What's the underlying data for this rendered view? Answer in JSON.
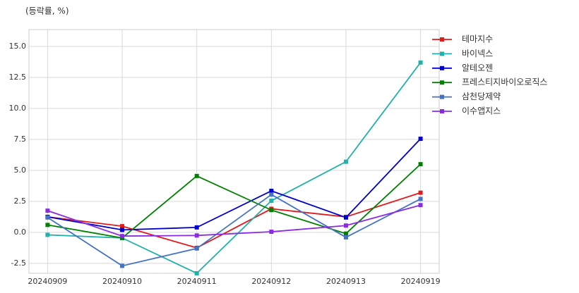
{
  "chart_data": {
    "type": "line",
    "ylabel": "(등락률, %)",
    "categories": [
      "20240909",
      "20240910",
      "20240911",
      "20240912",
      "20240913",
      "20240919"
    ],
    "series": [
      {
        "name": "테마지수",
        "color": "#e31a1c",
        "values": [
          1.25,
          0.5,
          -1.25,
          1.9,
          1.25,
          3.2
        ]
      },
      {
        "name": "바이넥스",
        "color": "#20b2aa",
        "values": [
          -0.2,
          -0.45,
          -3.3,
          2.55,
          5.7,
          13.7
        ]
      },
      {
        "name": "알테오젠",
        "color": "#0000cd",
        "values": [
          1.25,
          0.2,
          0.4,
          3.35,
          1.2,
          7.55
        ]
      },
      {
        "name": "프레스티지바이오로직스",
        "color": "#008000",
        "values": [
          0.6,
          -0.45,
          4.55,
          1.8,
          -0.1,
          5.5
        ]
      },
      {
        "name": "삼천당제약",
        "color": "#4472c4",
        "values": [
          1.2,
          -2.7,
          -1.3,
          3.05,
          -0.4,
          2.7
        ]
      },
      {
        "name": "이수앱지스",
        "color": "#8a2be2",
        "values": [
          1.75,
          -0.3,
          -0.25,
          0.05,
          0.55,
          2.2
        ]
      }
    ],
    "ylim": [
      -3.3,
      16.36
    ],
    "yticks": [
      {
        "value": 15,
        "label": "15.0"
      },
      12.5,
      {
        "value": 10,
        "label": "10.0"
      },
      7.5,
      {
        "value": 5,
        "label": "5.0"
      },
      2.5,
      {
        "value": 0,
        "label": "0.0"
      },
      -2.5
    ],
    "grid": true,
    "legend": "upper right outside"
  }
}
